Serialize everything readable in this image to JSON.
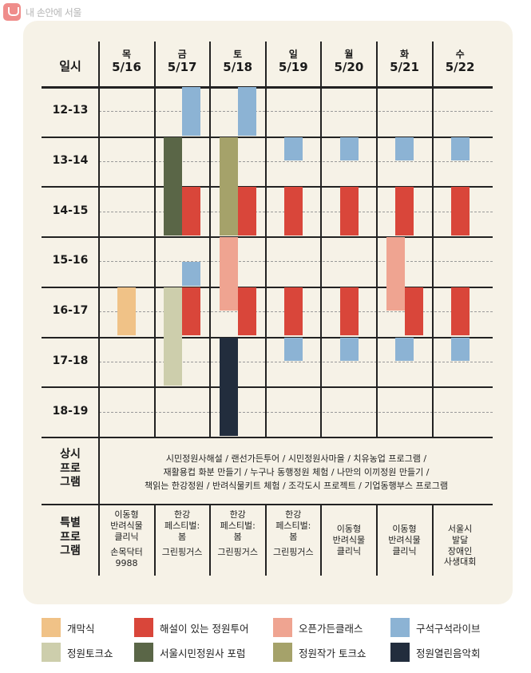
{
  "brand": {
    "text": "내 손안에 서울"
  },
  "header": {
    "label": "일시"
  },
  "days": [
    {
      "day": "목",
      "date": "5/16"
    },
    {
      "day": "금",
      "date": "5/17"
    },
    {
      "day": "토",
      "date": "5/18"
    },
    {
      "day": "일",
      "date": "5/19"
    },
    {
      "day": "월",
      "date": "5/20"
    },
    {
      "day": "화",
      "date": "5/21"
    },
    {
      "day": "수",
      "date": "5/22"
    }
  ],
  "time_slots": [
    "12-13",
    "13-14",
    "14-15",
    "15-16",
    "16-17",
    "17-18",
    "18-19"
  ],
  "categories": {
    "opening": {
      "label": "개막식",
      "color": "#f0c287"
    },
    "tour": {
      "label": "해설이 있는 정원투어",
      "color": "#d9463a"
    },
    "open_garden": {
      "label": "오픈가든클래스",
      "color": "#efa491"
    },
    "corner_live": {
      "label": "구석구석라이브",
      "color": "#8cb3d4"
    },
    "talk_show": {
      "label": "정원토크쇼",
      "color": "#cdceac"
    },
    "citizen_forum": {
      "label": "서울시민정원사 포럼",
      "color": "#5a6647"
    },
    "writer_talk": {
      "label": "정원작가 토크쇼",
      "color": "#a5a26a"
    },
    "concert": {
      "label": "정원열린음악회",
      "color": "#222d3d"
    }
  },
  "events": [
    {
      "day": 0,
      "lane": "center",
      "start": 16,
      "end": 17,
      "category": "opening"
    },
    {
      "day": 1,
      "lane": "right",
      "start": 12,
      "end": 13,
      "category": "corner_live"
    },
    {
      "day": 1,
      "lane": "left",
      "start": 13,
      "end": 15,
      "category": "citizen_forum"
    },
    {
      "day": 1,
      "lane": "right",
      "start": 14,
      "end": 15,
      "category": "tour"
    },
    {
      "day": 1,
      "lane": "right",
      "start": 15.5,
      "end": 16,
      "category": "corner_live"
    },
    {
      "day": 1,
      "lane": "left",
      "start": 16,
      "end": 18,
      "category": "talk_show"
    },
    {
      "day": 1,
      "lane": "right",
      "start": 16,
      "end": 17,
      "category": "tour"
    },
    {
      "day": 2,
      "lane": "right",
      "start": 12,
      "end": 13,
      "category": "corner_live"
    },
    {
      "day": 2,
      "lane": "left",
      "start": 13,
      "end": 15,
      "category": "writer_talk"
    },
    {
      "day": 2,
      "lane": "right",
      "start": 14,
      "end": 15,
      "category": "tour"
    },
    {
      "day": 2,
      "lane": "left",
      "start": 15,
      "end": 16.5,
      "category": "open_garden"
    },
    {
      "day": 2,
      "lane": "right",
      "start": 16,
      "end": 17,
      "category": "tour"
    },
    {
      "day": 2,
      "lane": "left",
      "start": 17,
      "end": 19,
      "category": "concert"
    },
    {
      "day": 3,
      "lane": "center",
      "start": 13,
      "end": 13.5,
      "category": "corner_live"
    },
    {
      "day": 3,
      "lane": "center",
      "start": 14,
      "end": 15,
      "category": "tour"
    },
    {
      "day": 3,
      "lane": "center",
      "start": 16,
      "end": 17,
      "category": "tour"
    },
    {
      "day": 3,
      "lane": "center",
      "start": 17,
      "end": 17.5,
      "category": "corner_live"
    },
    {
      "day": 4,
      "lane": "center",
      "start": 13,
      "end": 13.5,
      "category": "corner_live"
    },
    {
      "day": 4,
      "lane": "center",
      "start": 14,
      "end": 15,
      "category": "tour"
    },
    {
      "day": 4,
      "lane": "center",
      "start": 16,
      "end": 17,
      "category": "tour"
    },
    {
      "day": 4,
      "lane": "center",
      "start": 17,
      "end": 17.5,
      "category": "corner_live"
    },
    {
      "day": 5,
      "lane": "center",
      "start": 13,
      "end": 13.5,
      "category": "corner_live"
    },
    {
      "day": 5,
      "lane": "center",
      "start": 14,
      "end": 15,
      "category": "tour"
    },
    {
      "day": 5,
      "lane": "left",
      "start": 15,
      "end": 16.5,
      "category": "open_garden"
    },
    {
      "day": 5,
      "lane": "right",
      "start": 16,
      "end": 17,
      "category": "tour"
    },
    {
      "day": 5,
      "lane": "center",
      "start": 17,
      "end": 17.5,
      "category": "corner_live"
    },
    {
      "day": 6,
      "lane": "center",
      "start": 13,
      "end": 13.5,
      "category": "corner_live"
    },
    {
      "day": 6,
      "lane": "center",
      "start": 14,
      "end": 15,
      "category": "tour"
    },
    {
      "day": 6,
      "lane": "center",
      "start": 16,
      "end": 17,
      "category": "tour"
    },
    {
      "day": 6,
      "lane": "center",
      "start": 17,
      "end": 17.5,
      "category": "corner_live"
    }
  ],
  "regular_programs": {
    "label": "상시\n프로\n그램",
    "lines": [
      "시민정원사해설 / 랜선가든투어 / 시민정원사마을 / 치유농업 프로그램 /",
      "재활용컵 화분 만들기 / 누구나 동행정원 체험 / 나만의 이끼정원 만들기 /",
      "책읽는 한강정원 / 반려식물키트 체험 / 조각도시 프로젝트 / 기업동행부스 프로그램"
    ]
  },
  "special_programs": {
    "label": "특별\n프로\n그램",
    "cells": [
      {
        "main": "이동형\n반려식물\n클리닉",
        "sub": "손목닥터\n9988"
      },
      {
        "main": "한강\n페스티벌:\n봄",
        "sub": "그린핑거스"
      },
      {
        "main": "한강\n페스티벌:\n봄",
        "sub": "그린핑거스"
      },
      {
        "main": "한강\n페스티벌:\n봄",
        "sub": "그린핑거스"
      },
      {
        "main": "이동형\n반려식물\n클리닉",
        "sub": ""
      },
      {
        "main": "이동형\n반려식물\n클리닉",
        "sub": ""
      },
      {
        "main": "서울시\n발달\n장애인\n사생대회",
        "sub": ""
      }
    ]
  },
  "legend": [
    [
      "opening",
      "tour",
      "open_garden",
      "corner_live"
    ],
    [
      "talk_show",
      "citizen_forum",
      "writer_talk",
      "concert"
    ]
  ]
}
